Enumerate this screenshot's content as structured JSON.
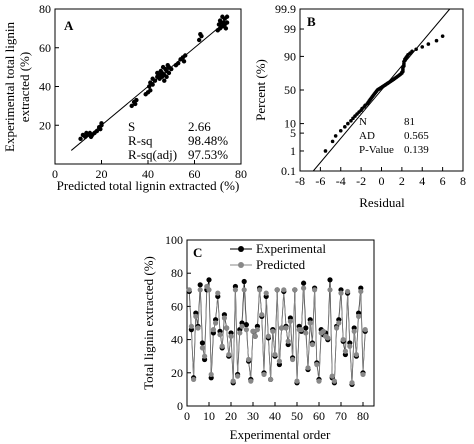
{
  "chart_data": [
    {
      "type": "scatter",
      "panel_label": "A",
      "xlabel": "Predicted total lignin extracted (%)",
      "ylabel_lines": [
        "Experimental total lignin",
        "extracted (%)"
      ],
      "xlim": [
        0,
        80
      ],
      "ylim": [
        0,
        80
      ],
      "xticks": [
        0,
        20,
        40,
        60,
        80
      ],
      "yticks": [
        20,
        40,
        60,
        80
      ],
      "stats": [
        {
          "label": "S",
          "value": "2.66"
        },
        {
          "label": "R-sq",
          "value": "98.48%"
        },
        {
          "label": "R-sq(adj)",
          "value": "97.53%"
        }
      ],
      "fit_line": [
        [
          7,
          7
        ],
        [
          74,
          74
        ]
      ],
      "x": [
        11,
        12,
        13,
        13.5,
        14,
        15,
        15.5,
        16,
        17,
        18,
        19,
        19.5,
        20,
        20,
        33,
        34,
        34.5,
        35,
        39,
        40,
        40.5,
        41,
        41,
        42,
        42,
        43,
        44,
        44,
        45,
        45,
        45.5,
        46,
        46,
        46.5,
        47,
        47,
        47.5,
        48,
        48,
        48.5,
        49,
        49,
        50,
        52,
        53,
        54,
        55,
        55.5,
        56,
        62,
        62.5,
        63,
        70,
        70.5,
        71,
        71,
        71.5,
        72,
        72,
        72.5,
        73,
        73,
        73.5,
        74,
        74
      ],
      "y": [
        13,
        15,
        14,
        16,
        15,
        16,
        14,
        15,
        16,
        17,
        19,
        18,
        20,
        21,
        30,
        32,
        31,
        33,
        36,
        37,
        40,
        38,
        42,
        41,
        44,
        43,
        45,
        47,
        44,
        46,
        48,
        45,
        47,
        50,
        43,
        46,
        49,
        45,
        48,
        51,
        47,
        50,
        49,
        51,
        52,
        54,
        55,
        53,
        56,
        64,
        67,
        66,
        69,
        72,
        70,
        74,
        73,
        71,
        76,
        73,
        72,
        75,
        70,
        73,
        76
      ]
    },
    {
      "type": "scatter",
      "panel_label": "B",
      "subtype": "normal-probability",
      "xlabel": "Residual",
      "ylabel": "Percent (%)",
      "xlim": [
        -8,
        8
      ],
      "xticks": [
        -8,
        -6,
        -4,
        -2,
        0,
        2,
        4,
        6,
        8
      ],
      "yscale": "probability",
      "yticks": [
        0.1,
        1,
        5,
        10,
        50,
        90,
        99,
        99.9
      ],
      "stats": [
        {
          "label": "N",
          "value": "81"
        },
        {
          "label": "AD",
          "value": "0.565"
        },
        {
          "label": "P-Value",
          "value": "0.139"
        }
      ],
      "fit_line": [
        [
          -6.7,
          0.1
        ],
        [
          6.7,
          99.9
        ]
      ],
      "x": [
        -5.5,
        -4.8,
        -4.5,
        -4.0,
        -3.6,
        -3.3,
        -3.0,
        -2.8,
        -2.6,
        -2.4,
        -2.2,
        -2.0,
        -1.9,
        -1.7,
        -1.6,
        -1.4,
        -1.3,
        -1.2,
        -1.1,
        -1.0,
        -0.9,
        -0.8,
        -0.7,
        -0.6,
        -0.5,
        -0.4,
        -0.3,
        -0.2,
        -0.1,
        0.0,
        0.1,
        0.2,
        0.3,
        0.4,
        0.5,
        0.6,
        0.7,
        0.8,
        0.9,
        1.0,
        1.1,
        1.2,
        1.3,
        1.4,
        1.5,
        1.6,
        1.7,
        1.8,
        1.9,
        2.0,
        2.0,
        2.1,
        2.1,
        2.1,
        2.2,
        2.2,
        2.2,
        2.3,
        2.3,
        2.4,
        2.5,
        2.6,
        2.8,
        3.0,
        3.4,
        4.0,
        4.6,
        5.4,
        6.0
      ],
      "y": [
        1,
        2.5,
        4,
        6,
        8,
        10,
        12,
        14,
        16,
        18,
        20,
        22,
        24,
        26,
        28,
        30,
        32,
        34,
        36,
        38,
        40,
        42,
        44,
        46,
        48,
        50,
        51,
        52,
        53,
        54,
        55,
        56,
        57,
        58,
        59,
        60,
        61,
        62,
        63,
        64,
        65,
        66,
        67,
        68,
        69,
        70,
        71,
        72,
        73,
        74,
        75,
        76,
        78,
        80,
        82,
        84,
        86,
        87,
        88,
        89,
        90,
        91,
        92,
        93,
        94,
        95,
        96,
        97,
        98
      ]
    },
    {
      "type": "line",
      "panel_label": "C",
      "xlabel": "Experimental order",
      "ylabel": "Total lignin extracted (%)",
      "xlim": [
        0,
        85
      ],
      "ylim": [
        0,
        100
      ],
      "xticks": [
        0,
        10,
        20,
        30,
        40,
        50,
        60,
        70,
        80
      ],
      "yticks": [
        0,
        20,
        40,
        60,
        80,
        100
      ],
      "legend_position": "top-right",
      "series": [
        {
          "name": "Experimental",
          "color": "#000000",
          "values": [
            69,
            46,
            17,
            56,
            48,
            73,
            38,
            28,
            70,
            76,
            17,
            44,
            52,
            66,
            45,
            35,
            55,
            47,
            30,
            44,
            14,
            72,
            19,
            46,
            50,
            75,
            49,
            27,
            16,
            45,
            42,
            48,
            71,
            54,
            20,
            66,
            41,
            16,
            46,
            30,
            70,
            25,
            47,
            69,
            48,
            37,
            53,
            29,
            70,
            14,
            48,
            45,
            74,
            47,
            22,
            52,
            38,
            71,
            26,
            16,
            46,
            43,
            44,
            40,
            76,
            17,
            14,
            48,
            52,
            70,
            39,
            31,
            68,
            38,
            13,
            47,
            30,
            56,
            71,
            20,
            45
          ]
        },
        {
          "name": "Predicted",
          "color": "#888888",
          "values": [
            70,
            48,
            16,
            54,
            47,
            70,
            35,
            30,
            72,
            70,
            19,
            46,
            50,
            68,
            43,
            36,
            53,
            47,
            31,
            42,
            15,
            70,
            18,
            44,
            48,
            70,
            46,
            28,
            15,
            45,
            42,
            46,
            70,
            55,
            19,
            68,
            42,
            16,
            45,
            31,
            70,
            27,
            47,
            70,
            47,
            39,
            51,
            28,
            70,
            15,
            46,
            46,
            71,
            44,
            23,
            50,
            37,
            70,
            25,
            15,
            44,
            45,
            42,
            41,
            70,
            18,
            15,
            47,
            50,
            68,
            40,
            33,
            69,
            36,
            14,
            45,
            31,
            54,
            69,
            19,
            46
          ]
        }
      ]
    }
  ]
}
